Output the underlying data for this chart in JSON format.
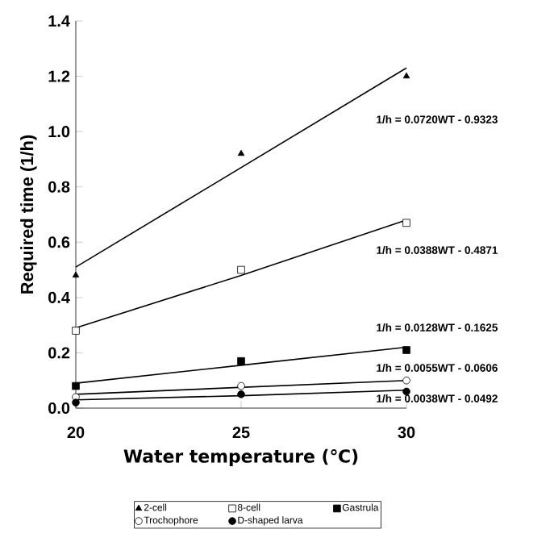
{
  "chart_data": {
    "type": "scatter",
    "xlabel": "Water temperature (℃)",
    "ylabel": "Required time (1/h)",
    "x": [
      20,
      25,
      30
    ],
    "xlim": [
      20,
      30
    ],
    "xticks": [
      20,
      25,
      30
    ],
    "ylim": [
      0,
      1.4
    ],
    "yticks": [
      {
        "value": 0,
        "label": "0.0"
      },
      0.2,
      0.4,
      0.6,
      0.8,
      {
        "value": 1,
        "label": "1.0"
      },
      1.2,
      1.4
    ],
    "grid": false,
    "legend": "bottom",
    "series": [
      {
        "name": "2-cell",
        "color": "#000000",
        "marker": "triangle",
        "values": [
          0.48,
          0.92,
          1.2
        ]
      },
      {
        "name": "8-cell",
        "color": "#000000",
        "marker": "square",
        "values": [
          0.28,
          0.5,
          0.67
        ]
      },
      {
        "name": "Gastrula",
        "color": "#000000",
        "marker": "square",
        "values": [
          0.08,
          0.17,
          0.21
        ]
      },
      {
        "name": "Trochophore",
        "color": "#000000",
        "marker": "circle",
        "values": [
          0.04,
          0.08,
          0.1
        ]
      },
      {
        "name": "D-shaped larva",
        "color": "#000000",
        "marker": "circle",
        "values": [
          0.02,
          0.05,
          0.06
        ]
      },
      {
        "type": "line",
        "color": "#000000",
        "marker": "none",
        "values": [
          0.51,
          0.87,
          1.23
        ]
      },
      {
        "type": "line",
        "color": "#000000",
        "marker": "none",
        "values": [
          0.29,
          0.48,
          0.68
        ]
      },
      {
        "type": "line",
        "color": "#000000",
        "marker": "none",
        "values": [
          0.09,
          0.155,
          0.22
        ]
      },
      {
        "type": "line",
        "color": "#000000",
        "marker": "none",
        "values": [
          0.05,
          0.075,
          0.1
        ]
      },
      {
        "type": "line",
        "color": "#000000",
        "marker": "none",
        "values": [
          0.03,
          0.045,
          0.065
        ]
      }
    ],
    "annotations": [
      "1/h = 0.0720WT - 0.9323",
      "1/h = 0.0388WT - 0.4871",
      "1/h = 0.0128WT - 0.1625",
      "1/h = 0.0055WT - 0.0606",
      "1/h = 0.0038WT - 0.0492"
    ]
  }
}
